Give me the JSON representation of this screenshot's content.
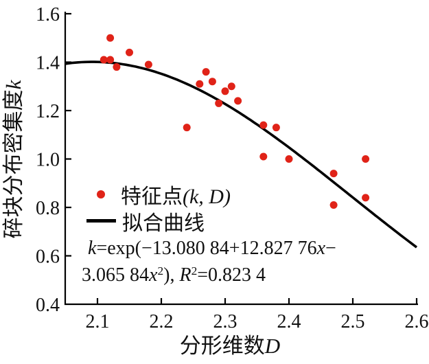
{
  "figure": {
    "background": "#ffffff",
    "text_color": "#111111",
    "accent_red": "#e02318",
    "curve_black": "#000000"
  },
  "axes": {
    "y": {
      "title": "碎块分布密集度",
      "title_var": "k",
      "tick_labels": [
        "0.4",
        "0.6",
        "0.8",
        "1.0",
        "1.2",
        "1.4",
        "1.6"
      ],
      "range": [
        0.4,
        1.6
      ]
    },
    "x": {
      "title": "分形维数",
      "title_var": "D",
      "tick_labels": [
        "2.1",
        "2.2",
        "2.3",
        "2.4",
        "2.5",
        "2.6"
      ],
      "range": [
        2.05,
        2.6
      ]
    }
  },
  "legend": {
    "items": [
      {
        "marker": "dot",
        "color": "#e02318",
        "label_text": "特征点",
        "label_math": "(k, D)"
      },
      {
        "marker": "line",
        "color": "#000000",
        "label_text": "拟合曲线",
        "label_math": ""
      }
    ]
  },
  "equation": {
    "line1_tokens": [
      {
        "t": "k",
        "style": "italic"
      },
      {
        "t": "=exp(−13.080 84+12.827 76",
        "style": ""
      },
      {
        "t": "x",
        "style": "italic"
      },
      {
        "t": "−",
        "style": ""
      }
    ],
    "line2_tokens": [
      {
        "t": "3.065 84",
        "style": ""
      },
      {
        "t": "x",
        "style": "italic"
      },
      {
        "t": "2",
        "style": "sup"
      },
      {
        "t": "), ",
        "style": ""
      },
      {
        "t": "R",
        "style": "italic"
      },
      {
        "t": "2",
        "style": "sup"
      },
      {
        "t": "=0.823 4",
        "style": ""
      }
    ]
  },
  "chart_data": {
    "type": "scatter",
    "title": "",
    "xlabel": "分形维数D",
    "ylabel": "碎块分布密集度k",
    "xlim": [
      2.05,
      2.6
    ],
    "ylim": [
      0.4,
      1.6
    ],
    "x_ticks": [
      2.1,
      2.2,
      2.3,
      2.4,
      2.5,
      2.6
    ],
    "y_ticks": [
      0.4,
      0.6,
      0.8,
      1.0,
      1.2,
      1.4,
      1.6
    ],
    "grid": false,
    "legend_position": "lower-left",
    "series": [
      {
        "name": "特征点(k, D)",
        "type": "scatter",
        "color": "#e02318",
        "marker_radius": 5.5,
        "points": [
          [
            2.11,
            1.41
          ],
          [
            2.12,
            1.5
          ],
          [
            2.12,
            1.41
          ],
          [
            2.13,
            1.38
          ],
          [
            2.15,
            1.44
          ],
          [
            2.18,
            1.39
          ],
          [
            2.24,
            1.13
          ],
          [
            2.26,
            1.31
          ],
          [
            2.27,
            1.36
          ],
          [
            2.28,
            1.32
          ],
          [
            2.29,
            1.23
          ],
          [
            2.3,
            1.28
          ],
          [
            2.31,
            1.3
          ],
          [
            2.32,
            1.24
          ],
          [
            2.36,
            1.14
          ],
          [
            2.36,
            1.01
          ],
          [
            2.38,
            1.13
          ],
          [
            2.4,
            1.0
          ],
          [
            2.47,
            0.94
          ],
          [
            2.47,
            0.81
          ],
          [
            2.52,
            1.0
          ],
          [
            2.52,
            0.84
          ]
        ]
      },
      {
        "name": "拟合曲线",
        "type": "line",
        "color": "#000000",
        "stroke_width": 3.6,
        "fit": "k=exp(-13.08084+12.82776x-3.06584x^2)",
        "coefficients": {
          "a": -13.08084,
          "b": 12.82776,
          "c": -3.06584
        },
        "r_squared": 0.8234,
        "x_domain": [
          2.05,
          2.6
        ]
      }
    ]
  }
}
